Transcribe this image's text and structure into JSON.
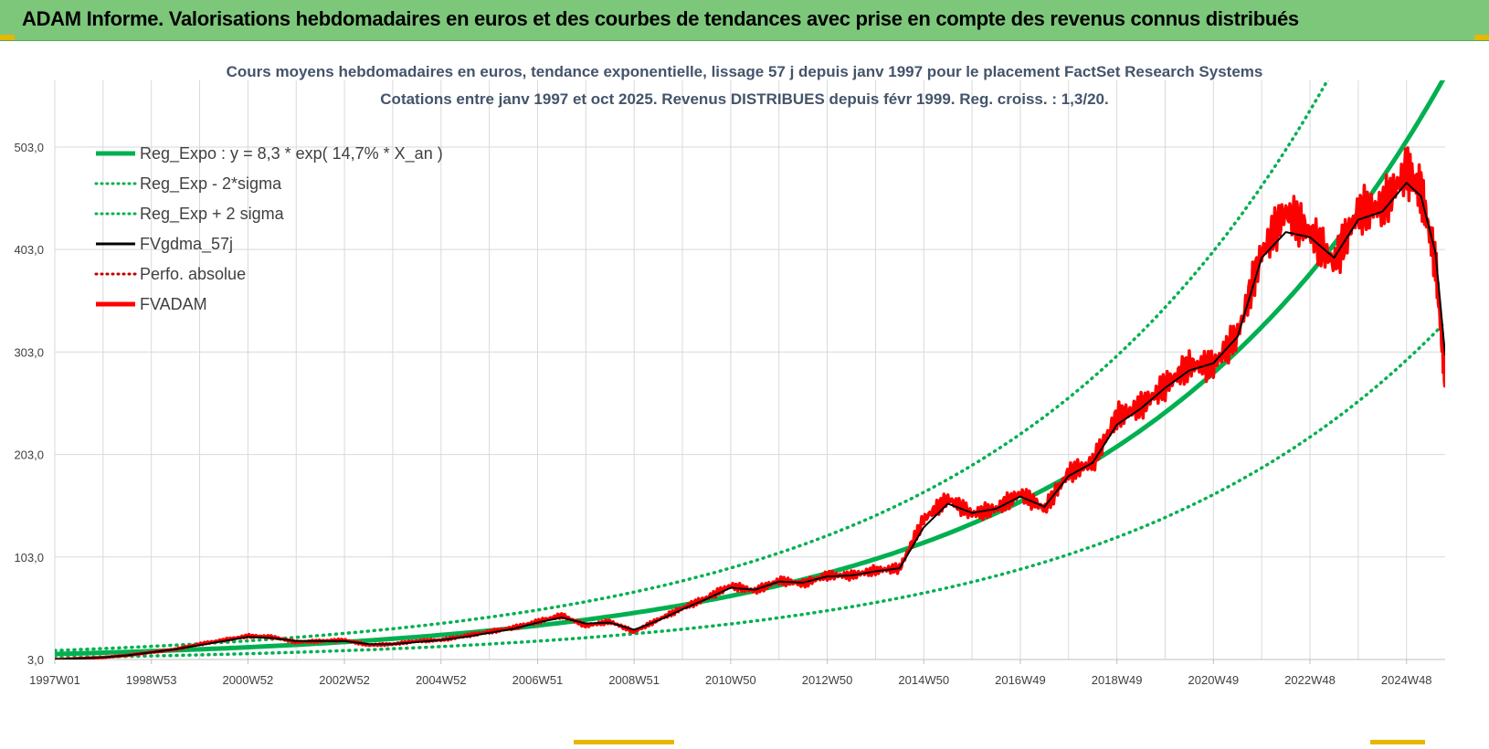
{
  "banner": {
    "title": "ADAM Informe. Valorisations hebdomadaires en euros et des courbes de tendances avec prise en compte des revenus connus distribués"
  },
  "colors": {
    "banner_bg": "#7dc77b",
    "green": "#00b050",
    "black": "#000000",
    "red": "#ff0000",
    "darkred": "#c00000",
    "grid": "#d9d9d9",
    "title_text": "#44546a"
  },
  "chart_data": {
    "type": "line",
    "title": "Cours moyens hebdomadaires en euros, tendance exponentielle, lissage 57 j depuis janv 1997 pour le placement FactSet  Research Systems",
    "subtitle": "Cotations entre janv 1997 et oct 2025. Revenus DISTRIBUES depuis févr 1999. Reg. croiss. : 1,3/20.",
    "xlabel": "",
    "ylabel": "",
    "xlim": [
      1997.0,
      2025.8
    ],
    "ylim": [
      3.0,
      568.0
    ],
    "yticks": [
      3.0,
      103.0,
      203.0,
      303.0,
      403.0,
      503.0
    ],
    "ytick_labels": [
      "3,0",
      "103,0",
      "203,0",
      "303,0",
      "403,0",
      "503,0"
    ],
    "xticks": [
      1997.0,
      1999.0,
      2001.0,
      2003.0,
      2005.0,
      2007.0,
      2009.0,
      2011.0,
      2013.0,
      2015.0,
      2017.0,
      2019.0,
      2021.0,
      2023.0,
      2025.0
    ],
    "xtick_labels": [
      "1997W01",
      "1998W53",
      "2000W52",
      "2002W52",
      "2004W52",
      "2006W51",
      "2008W51",
      "2010W50",
      "2012W50",
      "2014W50",
      "2016W49",
      "2018W49",
      "2020W49",
      "2022W48",
      "2024W48"
    ],
    "legend": {
      "position": "top-left",
      "entries": [
        {
          "name": "Reg_Expo : y = 8,3 * exp( 14,7% *  X_an )",
          "color": "#00b050",
          "style": "solid-thick"
        },
        {
          "name": "Reg_Exp - 2*sigma",
          "color": "#00b050",
          "style": "dotted"
        },
        {
          "name": "Reg_Exp + 2 sigma",
          "color": "#00b050",
          "style": "dotted"
        },
        {
          "name": "FVgdma_57j",
          "color": "#000000",
          "style": "solid"
        },
        {
          "name": "Perfo. absolue",
          "color": "#c00000",
          "style": "dotted"
        },
        {
          "name": "FVADAM",
          "color": "#ff0000",
          "style": "solid-thick"
        }
      ]
    },
    "regression": {
      "a": 8.3,
      "b": 0.147,
      "lower_factor": 0.58,
      "upper_factor": 1.42
    },
    "price_series": {
      "name": "FVADAM",
      "x": [
        1997.0,
        1997.5,
        1998.0,
        1998.5,
        1999.0,
        1999.5,
        2000.0,
        2000.5,
        2001.0,
        2001.5,
        2002.0,
        2002.5,
        2003.0,
        2003.5,
        2004.0,
        2004.5,
        2005.0,
        2005.5,
        2006.0,
        2006.5,
        2007.0,
        2007.5,
        2008.0,
        2008.5,
        2009.0,
        2009.5,
        2010.0,
        2010.5,
        2011.0,
        2011.5,
        2012.0,
        2012.5,
        2013.0,
        2013.5,
        2014.0,
        2014.5,
        2015.0,
        2015.5,
        2016.0,
        2016.5,
        2017.0,
        2017.5,
        2018.0,
        2018.5,
        2019.0,
        2019.5,
        2020.0,
        2020.5,
        2021.0,
        2021.5,
        2022.0,
        2022.5,
        2023.0,
        2023.5,
        2024.0,
        2024.5,
        2025.0,
        2025.3,
        2025.6,
        2025.8
      ],
      "y": [
        3,
        4,
        5,
        7,
        10,
        13,
        18,
        22,
        26,
        25,
        20,
        21,
        22,
        17,
        18,
        21,
        22,
        26,
        30,
        34,
        40,
        46,
        36,
        40,
        30,
        42,
        53,
        63,
        75,
        70,
        80,
        77,
        85,
        85,
        90,
        92,
        140,
        160,
        145,
        150,
        165,
        150,
        185,
        195,
        240,
        250,
        270,
        290,
        290,
        320,
        400,
        440,
        420,
        390,
        440,
        445,
        480,
        460,
        390,
        275
      ]
    },
    "smoothed_series": {
      "name": "FVgdma_57j",
      "x": [
        1997.0,
        1997.5,
        1998.0,
        1998.5,
        1999.0,
        1999.5,
        2000.0,
        2000.5,
        2001.0,
        2001.5,
        2002.0,
        2002.5,
        2003.0,
        2003.5,
        2004.0,
        2004.5,
        2005.0,
        2005.5,
        2006.0,
        2006.5,
        2007.0,
        2007.5,
        2008.0,
        2008.5,
        2009.0,
        2009.5,
        2010.0,
        2010.5,
        2011.0,
        2011.5,
        2012.0,
        2012.5,
        2013.0,
        2013.5,
        2014.0,
        2014.5,
        2015.0,
        2015.5,
        2016.0,
        2016.5,
        2017.0,
        2017.5,
        2018.0,
        2018.5,
        2019.0,
        2019.5,
        2020.0,
        2020.5,
        2021.0,
        2021.5,
        2022.0,
        2022.5,
        2023.0,
        2023.5,
        2024.0,
        2024.5,
        2025.0,
        2025.3,
        2025.6,
        2025.8
      ],
      "y": [
        3,
        4,
        5,
        7,
        10,
        13,
        17,
        21,
        25,
        24,
        21,
        21,
        21,
        18,
        18,
        20,
        22,
        25,
        29,
        33,
        39,
        44,
        38,
        39,
        32,
        41,
        52,
        62,
        73,
        71,
        79,
        78,
        84,
        85,
        89,
        92,
        132,
        155,
        146,
        150,
        162,
        152,
        182,
        195,
        232,
        248,
        268,
        285,
        292,
        318,
        395,
        420,
        415,
        395,
        432,
        440,
        468,
        455,
        400,
        300
      ]
    }
  }
}
